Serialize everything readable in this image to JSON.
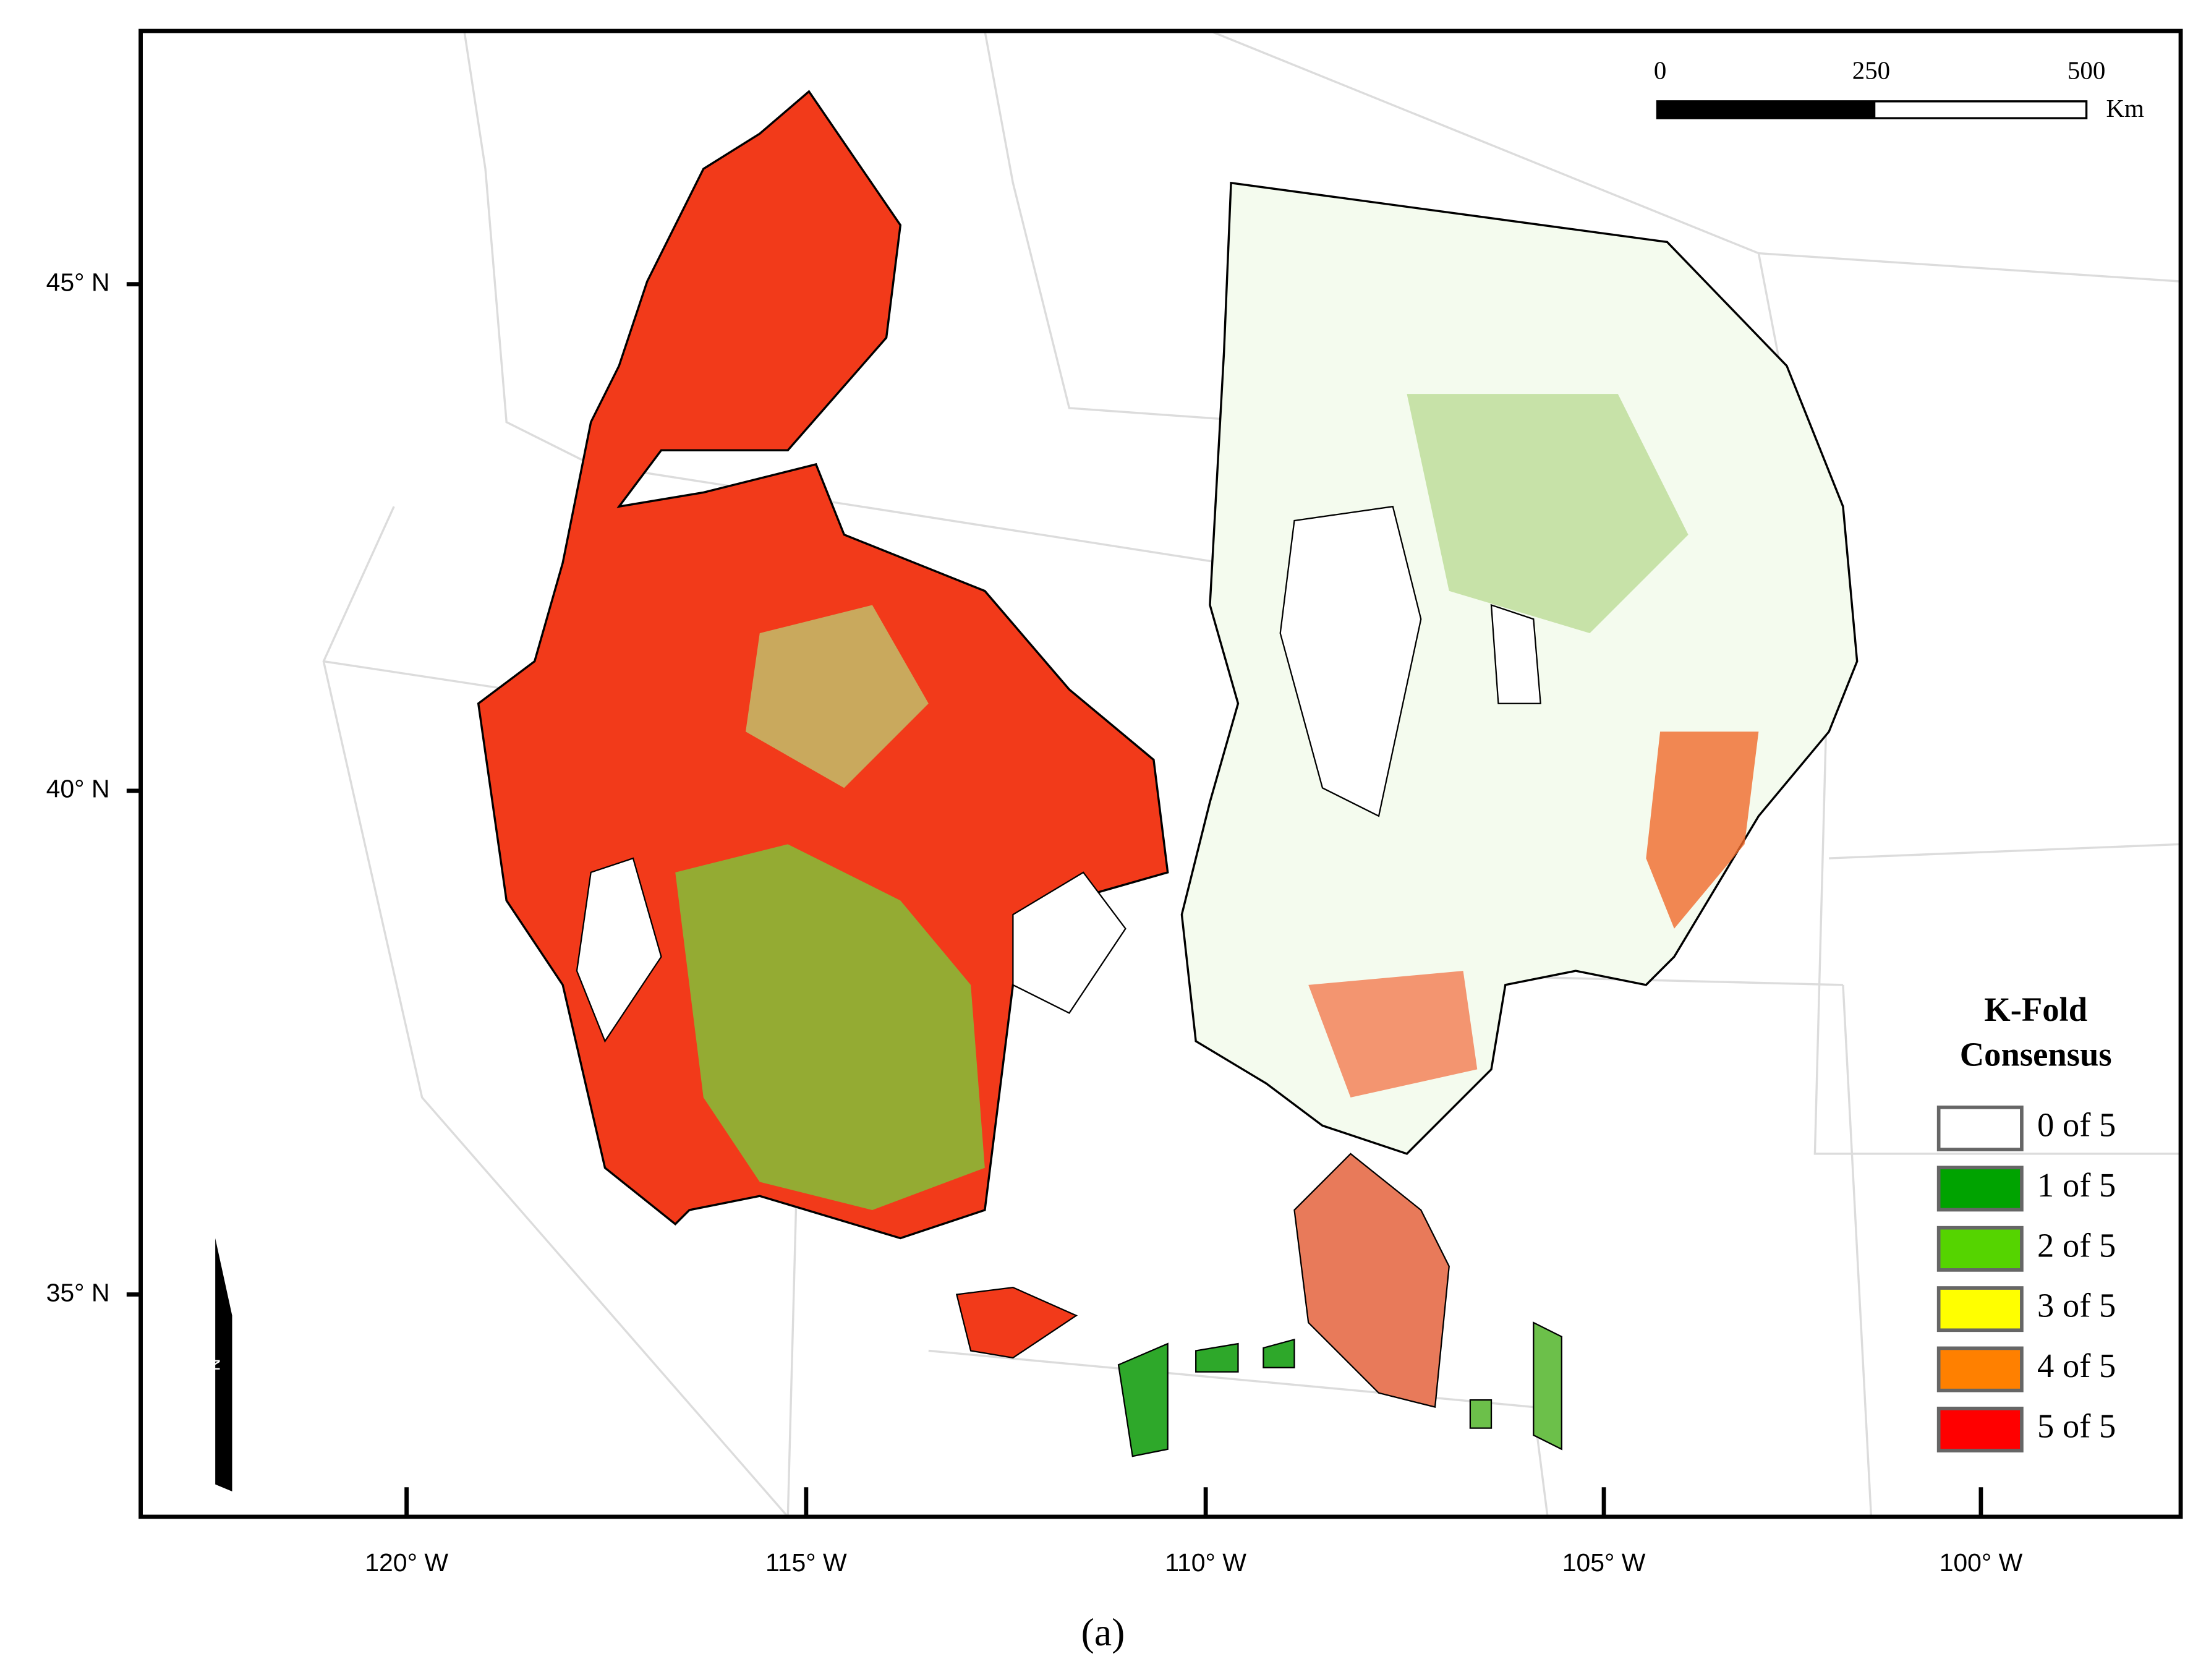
{
  "map": {
    "lat_labels": [
      "45° N",
      "40° N",
      "35° N"
    ],
    "lon_labels": [
      "120° W",
      "115° W",
      "110° W",
      "105° W",
      "100° W"
    ],
    "scale_bar": {
      "ticks": [
        "0",
        "250",
        "500"
      ],
      "unit": "Km"
    },
    "north_arrow": "N",
    "legend": {
      "title": [
        "K-Fold",
        "Consensus"
      ],
      "items": [
        {
          "label": "0 of 5",
          "color": "#ffffff"
        },
        {
          "label": "1 of 5",
          "color": "#00a300"
        },
        {
          "label": "2 of 5",
          "color": "#55d400"
        },
        {
          "label": "3 of 5",
          "color": "#ffff00"
        },
        {
          "label": "4 of 5",
          "color": "#ff8000"
        },
        {
          "label": "5 of 5",
          "color": "#ff0000"
        }
      ]
    }
  },
  "caption": "(a)"
}
